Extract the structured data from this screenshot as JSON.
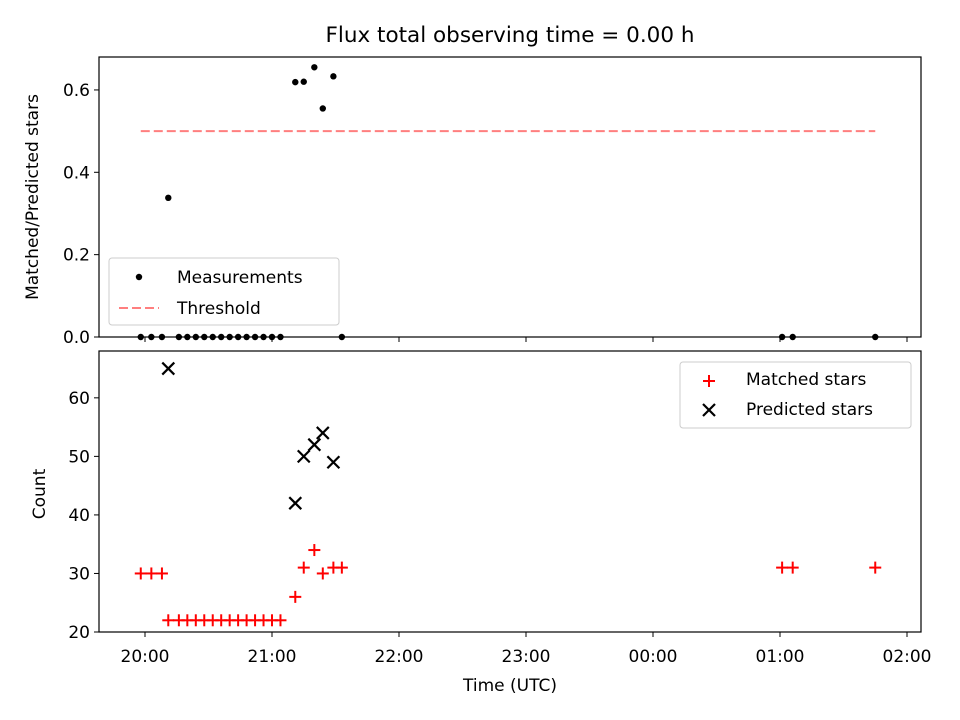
{
  "title": "Flux total observing time = 0.00 h",
  "chart_data": [
    {
      "type": "scatter",
      "ylabel": "Matched/Predicted stars",
      "xlabel": "",
      "ylim": [
        0,
        0.68
      ],
      "yticks": [
        0.0,
        0.2,
        0.4,
        0.6
      ],
      "ytick_labels": [
        "0.0",
        "0.2",
        "0.4",
        "0.6"
      ],
      "legend_position": "lower-left",
      "series": [
        {
          "name": "Measurements",
          "marker": "dot",
          "color": "#000000",
          "points": [
            [
              "19:58",
              0.0
            ],
            [
              "20:03",
              0.0
            ],
            [
              "20:08",
              0.0
            ],
            [
              "20:11",
              0.338
            ],
            [
              "20:16",
              0.0
            ],
            [
              "20:20",
              0.0
            ],
            [
              "20:24",
              0.0
            ],
            [
              "20:28",
              0.0
            ],
            [
              "20:32",
              0.0
            ],
            [
              "20:36",
              0.0
            ],
            [
              "20:40",
              0.0
            ],
            [
              "20:44",
              0.0
            ],
            [
              "20:48",
              0.0
            ],
            [
              "20:52",
              0.0
            ],
            [
              "20:56",
              0.0
            ],
            [
              "21:00",
              0.0
            ],
            [
              "21:04",
              0.0
            ],
            [
              "21:11",
              0.619
            ],
            [
              "21:15",
              0.62
            ],
            [
              "21:20",
              0.655
            ],
            [
              "21:24",
              0.555
            ],
            [
              "21:29",
              0.633
            ],
            [
              "21:33",
              0.0
            ],
            [
              "01:01",
              0.0
            ],
            [
              "01:06",
              0.0
            ],
            [
              "01:45",
              0.0
            ]
          ]
        },
        {
          "name": "Threshold",
          "style": "dashed",
          "color": "#ff7f7f",
          "points": [
            [
              "19:58",
              0.5
            ],
            [
              "01:45",
              0.5
            ]
          ]
        }
      ]
    },
    {
      "type": "scatter",
      "ylabel": "Count",
      "xlabel": "Time (UTC)",
      "ylim": [
        20,
        68
      ],
      "yticks": [
        20,
        30,
        40,
        50,
        60
      ],
      "ytick_labels": [
        "20",
        "30",
        "40",
        "50",
        "60"
      ],
      "xticks": [
        "20:00",
        "21:00",
        "22:00",
        "23:00",
        "00:00",
        "01:00",
        "02:00"
      ],
      "legend_position": "top-right",
      "series": [
        {
          "name": "Matched stars",
          "marker": "plus",
          "color": "#ff0000",
          "points": [
            [
              "19:58",
              30
            ],
            [
              "20:03",
              30
            ],
            [
              "20:08",
              30
            ],
            [
              "20:11",
              22
            ],
            [
              "20:16",
              22
            ],
            [
              "20:20",
              22
            ],
            [
              "20:24",
              22
            ],
            [
              "20:28",
              22
            ],
            [
              "20:32",
              22
            ],
            [
              "20:36",
              22
            ],
            [
              "20:40",
              22
            ],
            [
              "20:44",
              22
            ],
            [
              "20:48",
              22
            ],
            [
              "20:52",
              22
            ],
            [
              "20:56",
              22
            ],
            [
              "21:00",
              22
            ],
            [
              "21:04",
              22
            ],
            [
              "21:11",
              26
            ],
            [
              "21:15",
              31
            ],
            [
              "21:20",
              34
            ],
            [
              "21:24",
              30
            ],
            [
              "21:29",
              31
            ],
            [
              "21:33",
              31
            ],
            [
              "01:01",
              31
            ],
            [
              "01:06",
              31
            ],
            [
              "01:45",
              31
            ]
          ]
        },
        {
          "name": "Predicted stars",
          "marker": "x",
          "color": "#000000",
          "points": [
            [
              "20:11",
              65
            ],
            [
              "21:11",
              42
            ],
            [
              "21:15",
              50
            ],
            [
              "21:20",
              52
            ],
            [
              "21:24",
              54
            ],
            [
              "21:29",
              49
            ]
          ]
        }
      ]
    }
  ]
}
